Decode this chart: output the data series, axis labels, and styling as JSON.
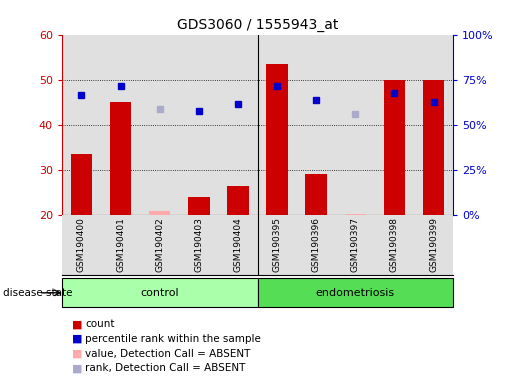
{
  "title": "GDS3060 / 1555943_at",
  "samples": [
    "GSM190400",
    "GSM190401",
    "GSM190402",
    "GSM190403",
    "GSM190404",
    "GSM190395",
    "GSM190396",
    "GSM190397",
    "GSM190398",
    "GSM190399"
  ],
  "bar_values": [
    33.5,
    45.0,
    null,
    24.0,
    26.5,
    53.5,
    29.0,
    null,
    50.0,
    50.0
  ],
  "bar_absent_values": [
    null,
    null,
    21.0,
    null,
    null,
    null,
    null,
    20.3,
    null,
    null
  ],
  "rank_values": [
    46.5,
    48.5,
    null,
    43.0,
    44.5,
    48.5,
    45.5,
    null,
    47.0,
    45.0
  ],
  "rank_absent_values": [
    null,
    null,
    43.5,
    null,
    null,
    null,
    null,
    42.5,
    null,
    null
  ],
  "bar_color": "#cc0000",
  "rank_color": "#0000cc",
  "bar_absent_color": "#ffaaaa",
  "rank_absent_color": "#aaaacc",
  "ylim_left": [
    20,
    60
  ],
  "yticks_left": [
    20,
    30,
    40,
    50,
    60
  ],
  "ytick_labels_right": [
    "0%",
    "25%",
    "50%",
    "75%",
    "100%"
  ],
  "grid_values": [
    30,
    40,
    50
  ],
  "control_color": "#aaffaa",
  "endometriosis_color": "#55dd55",
  "plot_bg_color": "#e0e0e0",
  "disease_state_label": "disease state",
  "group_label_control": "control",
  "group_label_endometriosis": "endometriosis",
  "legend_items": [
    {
      "color": "#cc0000",
      "label": "count"
    },
    {
      "color": "#0000cc",
      "label": "percentile rank within the sample"
    },
    {
      "color": "#ffaaaa",
      "label": "value, Detection Call = ABSENT"
    },
    {
      "color": "#aaaacc",
      "label": "rank, Detection Call = ABSENT"
    }
  ]
}
